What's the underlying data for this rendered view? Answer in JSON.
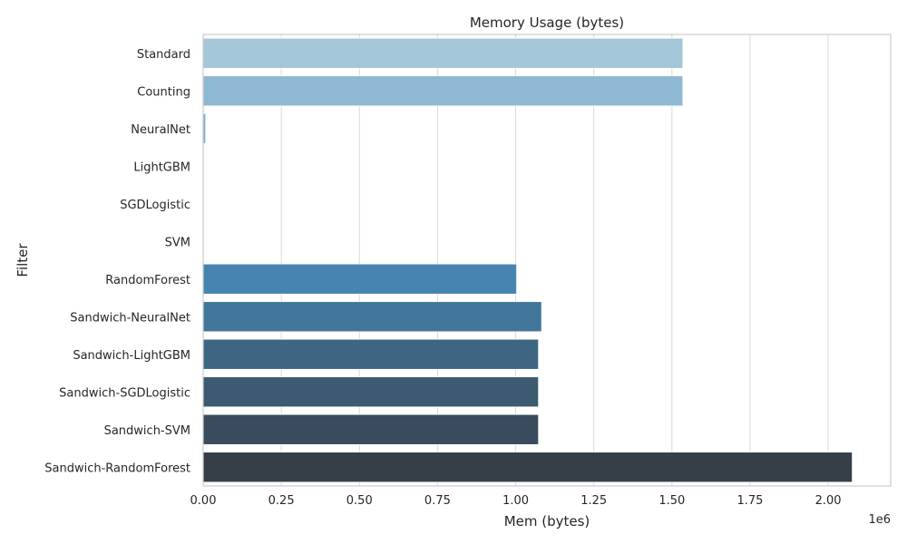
{
  "chart_data": {
    "type": "bar",
    "orientation": "horizontal",
    "title": "Memory Usage (bytes)",
    "xlabel": "Mem (bytes)",
    "ylabel": "Filter",
    "x_offset_label": "1e6",
    "xlim": [
      0,
      2.2
    ],
    "xticks": [
      0.0,
      0.25,
      0.5,
      0.75,
      1.0,
      1.25,
      1.5,
      1.75,
      2.0
    ],
    "xtick_labels": [
      "0.00",
      "0.25",
      "0.50",
      "0.75",
      "1.00",
      "1.25",
      "1.50",
      "1.75",
      "2.00"
    ],
    "grid": "vertical",
    "categories": [
      "Standard",
      "Counting",
      "NeuralNet",
      "LightGBM",
      "SGDLogistic",
      "SVM",
      "RandomForest",
      "Sandwich-NeuralNet",
      "Sandwich-LightGBM",
      "Sandwich-SGDLogistic",
      "Sandwich-SVM",
      "Sandwich-RandomForest"
    ],
    "values": [
      1.535,
      1.535,
      0.008,
      0.0015,
      0.0008,
      0.001,
      1.003,
      1.083,
      1.073,
      1.073,
      1.073,
      2.077
    ],
    "colors": [
      "#a3c6d9",
      "#8fb8d4",
      "#7eaccd",
      "#6aa0c6",
      "#5a95c1",
      "#4d8bbb",
      "#4884b0",
      "#42769a",
      "#3e6683",
      "#3c5b70",
      "#394b5c",
      "#363e47"
    ]
  }
}
